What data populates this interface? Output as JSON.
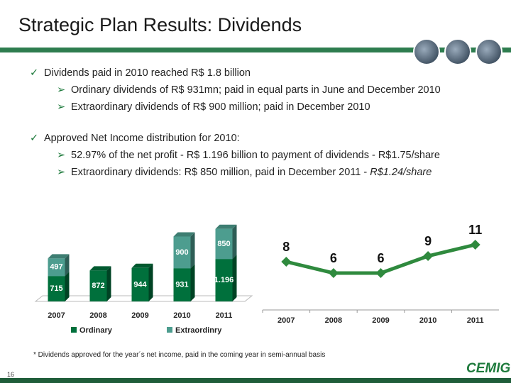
{
  "title": "Strategic Plan Results: Dividends",
  "bullets": [
    {
      "text": "Dividends paid in 2010 reached R$ 1.8 billion",
      "items": [
        {
          "text": "Ordinary dividends of R$ 931mn; paid in equal parts in June and December 2010"
        },
        {
          "text": "Extraordinary dividends of R$ 900 million; paid in December 2010"
        }
      ]
    },
    {
      "text": "Approved Net Income distribution for 2010:",
      "items": [
        {
          "text": "52.97% of the net profit - R$ 1.196 billion to payment of dividends - R$1.75/share"
        },
        {
          "text": "Extraordinary dividends: R$ 850 million, paid in December 2011 - ",
          "emphasis": "R$1.24/share"
        }
      ]
    }
  ],
  "footnote": "* Dividends approved for the year´s net income, paid in the coming year in semi-annual basis",
  "page_number": "16",
  "logo": "CEMIG",
  "chart_data": [
    {
      "type": "bar",
      "stacked": true,
      "categories": [
        "2007",
        "2008",
        "2009",
        "2010",
        "2011"
      ],
      "series": [
        {
          "name": "Ordinary",
          "color": "#00703c",
          "values": [
            715,
            872,
            944,
            931,
            1196
          ],
          "value_labels": [
            "715",
            "872",
            "944",
            "931",
            "1.196"
          ]
        },
        {
          "name": "Extraordinry",
          "color": "#4d9d8f",
          "values": [
            497,
            null,
            null,
            900,
            850
          ]
        }
      ]
    },
    {
      "type": "line",
      "categories": [
        "2007",
        "2008",
        "2009",
        "2010",
        "2011"
      ],
      "values": [
        8,
        6,
        6,
        9,
        11
      ],
      "color": "#2f8a3e"
    }
  ]
}
